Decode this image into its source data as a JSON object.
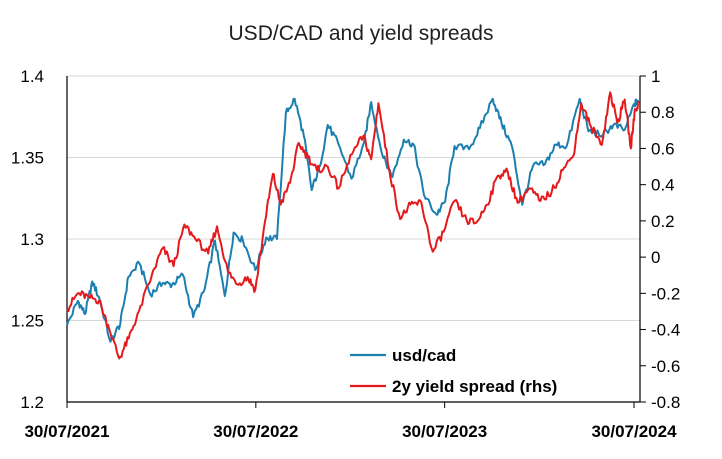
{
  "chart_data": {
    "type": "line",
    "title": "USD/CAD and yield spreads",
    "xlabel": "",
    "ylabel": "",
    "x_ticks": [
      "30/07/2021",
      "30/07/2022",
      "30/07/2023",
      "30/07/2024"
    ],
    "y_left": {
      "min": 1.2,
      "max": 1.4,
      "ticks": [
        "1.2",
        "1.25",
        "1.3",
        "1.35",
        "1.4"
      ]
    },
    "y_right": {
      "min": -0.8,
      "max": 1.0,
      "ticks": [
        "-0.8",
        "-0.6",
        "-0.4",
        "-0.2",
        "0",
        "0.2",
        "0.4",
        "0.6",
        "0.8",
        "1"
      ]
    },
    "grid": "horizontal",
    "legend_position": "bottom-right",
    "series": [
      {
        "name": "usd/cad",
        "axis": "left",
        "color": "#1b7fb0",
        "points": [
          [
            "2021-07-30",
            1.247
          ],
          [
            "2021-08-20",
            1.262
          ],
          [
            "2021-09-03",
            1.254
          ],
          [
            "2021-09-17",
            1.274
          ],
          [
            "2021-10-01",
            1.263
          ],
          [
            "2021-10-22",
            1.237
          ],
          [
            "2021-11-10",
            1.248
          ],
          [
            "2021-11-26",
            1.277
          ],
          [
            "2021-12-17",
            1.285
          ],
          [
            "2022-01-07",
            1.266
          ],
          [
            "2022-01-31",
            1.273
          ],
          [
            "2022-02-18",
            1.272
          ],
          [
            "2022-03-11",
            1.278
          ],
          [
            "2022-03-31",
            1.252
          ],
          [
            "2022-04-22",
            1.269
          ],
          [
            "2022-05-12",
            1.299
          ],
          [
            "2022-05-31",
            1.265
          ],
          [
            "2022-06-17",
            1.304
          ],
          [
            "2022-07-05",
            1.299
          ],
          [
            "2022-07-29",
            1.281
          ],
          [
            "2022-08-19",
            1.301
          ],
          [
            "2022-09-09",
            1.3
          ],
          [
            "2022-09-26",
            1.377
          ],
          [
            "2022-10-13",
            1.386
          ],
          [
            "2022-10-31",
            1.363
          ],
          [
            "2022-11-15",
            1.33
          ],
          [
            "2022-12-01",
            1.345
          ],
          [
            "2022-12-16",
            1.37
          ],
          [
            "2023-01-06",
            1.358
          ],
          [
            "2023-01-31",
            1.337
          ],
          [
            "2023-02-24",
            1.359
          ],
          [
            "2023-03-10",
            1.384
          ],
          [
            "2023-03-31",
            1.352
          ],
          [
            "2023-04-20",
            1.338
          ],
          [
            "2023-05-12",
            1.361
          ],
          [
            "2023-05-31",
            1.358
          ],
          [
            "2023-06-20",
            1.327
          ],
          [
            "2023-07-14",
            1.315
          ],
          [
            "2023-07-31",
            1.323
          ],
          [
            "2023-08-18",
            1.357
          ],
          [
            "2023-09-15",
            1.355
          ],
          [
            "2023-10-06",
            1.368
          ],
          [
            "2023-10-31",
            1.386
          ],
          [
            "2023-11-17",
            1.371
          ],
          [
            "2023-12-07",
            1.357
          ],
          [
            "2023-12-27",
            1.321
          ],
          [
            "2024-01-17",
            1.345
          ],
          [
            "2024-02-09",
            1.346
          ],
          [
            "2024-03-01",
            1.358
          ],
          [
            "2024-03-22",
            1.357
          ],
          [
            "2024-04-16",
            1.386
          ],
          [
            "2024-05-03",
            1.366
          ],
          [
            "2024-05-31",
            1.364
          ],
          [
            "2024-06-20",
            1.37
          ],
          [
            "2024-07-12",
            1.367
          ],
          [
            "2024-07-31",
            1.383
          ],
          [
            "2024-08-08",
            1.385
          ]
        ]
      },
      {
        "name": "2y yield spread (rhs)",
        "axis": "right",
        "color": "#e41a1c",
        "points": [
          [
            "2021-07-30",
            -0.29
          ],
          [
            "2021-08-20",
            -0.2
          ],
          [
            "2021-09-10",
            -0.22
          ],
          [
            "2021-09-30",
            -0.24
          ],
          [
            "2021-10-20",
            -0.4
          ],
          [
            "2021-11-08",
            -0.56
          ],
          [
            "2021-11-26",
            -0.45
          ],
          [
            "2021-12-16",
            -0.3
          ],
          [
            "2022-01-10",
            -0.1
          ],
          [
            "2022-01-31",
            0.05
          ],
          [
            "2022-02-21",
            -0.05
          ],
          [
            "2022-03-14",
            0.18
          ],
          [
            "2022-04-04",
            0.1
          ],
          [
            "2022-04-29",
            0.02
          ],
          [
            "2022-05-16",
            0.17
          ],
          [
            "2022-06-06",
            -0.08
          ],
          [
            "2022-06-24",
            -0.15
          ],
          [
            "2022-07-14",
            -0.11
          ],
          [
            "2022-07-29",
            -0.18
          ],
          [
            "2022-08-17",
            0.2
          ],
          [
            "2022-09-01",
            0.46
          ],
          [
            "2022-09-16",
            0.29
          ],
          [
            "2022-10-04",
            0.41
          ],
          [
            "2022-10-21",
            0.63
          ],
          [
            "2022-11-08",
            0.55
          ],
          [
            "2022-11-25",
            0.48
          ],
          [
            "2022-12-16",
            0.5
          ],
          [
            "2023-01-06",
            0.38
          ],
          [
            "2023-02-01",
            0.57
          ],
          [
            "2023-02-23",
            0.67
          ],
          [
            "2023-03-10",
            0.54
          ],
          [
            "2023-03-24",
            0.85
          ],
          [
            "2023-04-14",
            0.48
          ],
          [
            "2023-05-05",
            0.21
          ],
          [
            "2023-05-25",
            0.29
          ],
          [
            "2023-06-15",
            0.3
          ],
          [
            "2023-07-07",
            0.03
          ],
          [
            "2023-07-28",
            0.14
          ],
          [
            "2023-08-18",
            0.31
          ],
          [
            "2023-09-11",
            0.2
          ],
          [
            "2023-09-29",
            0.19
          ],
          [
            "2023-10-20",
            0.29
          ],
          [
            "2023-11-10",
            0.45
          ],
          [
            "2023-11-29",
            0.47
          ],
          [
            "2023-12-18",
            0.3
          ],
          [
            "2024-01-10",
            0.38
          ],
          [
            "2024-01-31",
            0.31
          ],
          [
            "2024-02-22",
            0.36
          ],
          [
            "2024-03-14",
            0.48
          ],
          [
            "2024-04-04",
            0.56
          ],
          [
            "2024-04-19",
            0.85
          ],
          [
            "2024-05-08",
            0.72
          ],
          [
            "2024-05-29",
            0.62
          ],
          [
            "2024-06-14",
            0.91
          ],
          [
            "2024-06-28",
            0.74
          ],
          [
            "2024-07-12",
            0.87
          ],
          [
            "2024-07-24",
            0.6
          ],
          [
            "2024-07-31",
            0.8
          ],
          [
            "2024-08-08",
            0.85
          ]
        ]
      }
    ]
  }
}
